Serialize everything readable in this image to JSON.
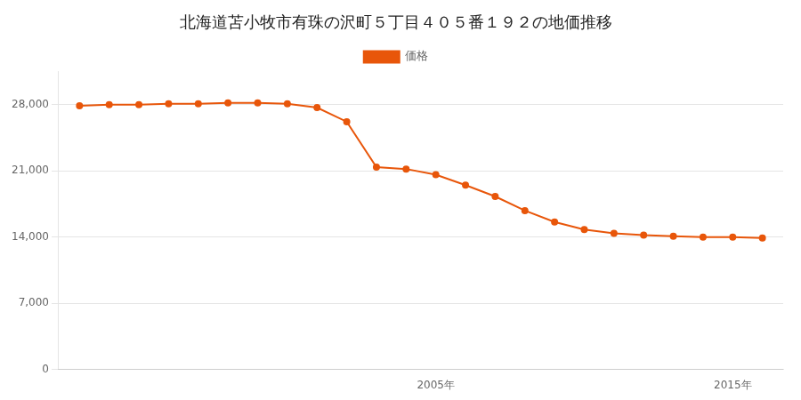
{
  "chart_data": {
    "type": "line",
    "title": "北海道苫小牧市有珠の沢町５丁目４０５番１９２の地価推移",
    "x": [
      1993,
      1994,
      1995,
      1996,
      1997,
      1998,
      1999,
      2000,
      2001,
      2002,
      2003,
      2004,
      2005,
      2006,
      2007,
      2008,
      2009,
      2010,
      2011,
      2012,
      2013,
      2014,
      2015,
      2016
    ],
    "series": [
      {
        "name": "価格",
        "color": "#e8560a",
        "marker": "circle",
        "values": [
          27900,
          28000,
          28000,
          28100,
          28100,
          28200,
          28200,
          28100,
          27700,
          26200,
          21400,
          21200,
          20600,
          19500,
          18300,
          16800,
          15600,
          14800,
          14400,
          14200,
          14100,
          14000,
          14000,
          13900
        ]
      }
    ],
    "xlim": [
      1992.3,
      2016.7
    ],
    "xticks": [
      {
        "value": 2005,
        "label": "2005年"
      },
      {
        "value": 2015,
        "label": "2015年"
      }
    ],
    "ylim": [
      0,
      31500
    ],
    "yticks": [
      0,
      {
        "value": 7000,
        "label": "7,000"
      },
      {
        "value": 14000,
        "label": "14,000"
      },
      {
        "value": 21000,
        "label": "21,000"
      },
      {
        "value": 28000,
        "label": "28,000"
      }
    ],
    "grid": "y",
    "legend": "top"
  }
}
